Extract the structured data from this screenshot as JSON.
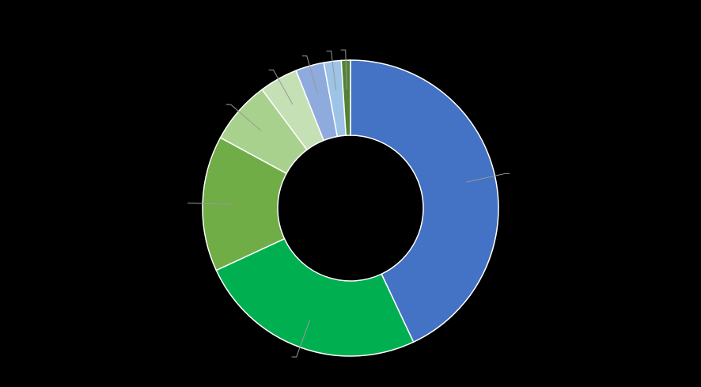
{
  "chart_data": {
    "type": "donut",
    "values": [
      43.0,
      25.1,
      14.8,
      6.9,
      4.2,
      3.1,
      1.9,
      1.0
    ],
    "colors": [
      "#4472c4",
      "#00b050",
      "#70ad47",
      "#a9d18e",
      "#c5e0b4",
      "#8faadc",
      "#9dc3e6",
      "#548235"
    ]
  }
}
